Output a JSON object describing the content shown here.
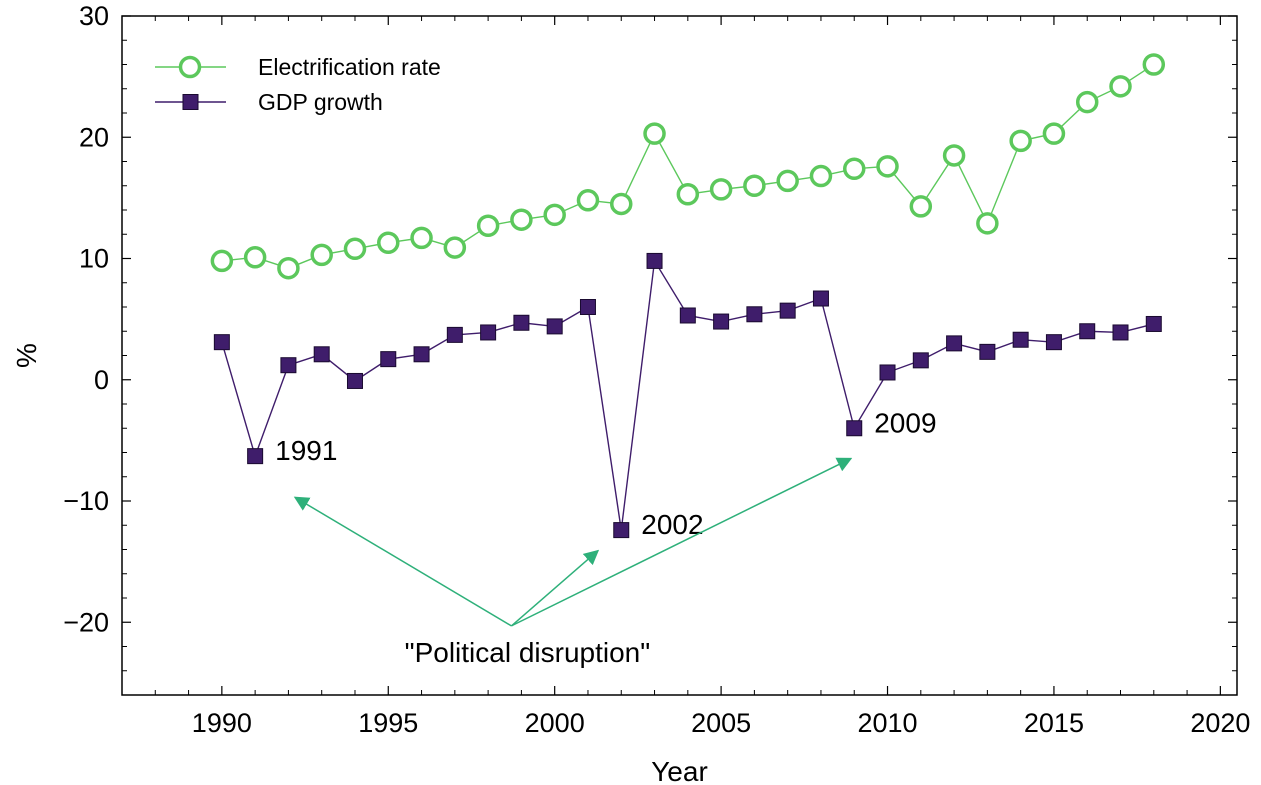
{
  "chart_data": {
    "type": "line",
    "xlabel": "Year",
    "ylabel": "%",
    "xlim": [
      1987,
      2020.5
    ],
    "ylim": [
      -26,
      30
    ],
    "x_ticks": [
      1990,
      1995,
      2000,
      2005,
      2010,
      2015,
      2020
    ],
    "y_ticks": [
      -20,
      -10,
      0,
      10,
      20,
      30
    ],
    "x_tick_labels": [
      "1990",
      "1995",
      "2000",
      "2005",
      "2010",
      "2015",
      "2020"
    ],
    "y_tick_labels": [
      "−20",
      "−10",
      "0",
      "10",
      "20",
      "30"
    ],
    "grid": false,
    "legend_position": "top-left",
    "x": [
      1990,
      1991,
      1992,
      1993,
      1994,
      1995,
      1996,
      1997,
      1998,
      1999,
      2000,
      2001,
      2002,
      2003,
      2004,
      2005,
      2006,
      2007,
      2008,
      2009,
      2010,
      2011,
      2012,
      2013,
      2014,
      2015,
      2016,
      2017,
      2018
    ],
    "series": [
      {
        "name": "Electrification rate",
        "marker": "open-circle",
        "color": "#5cc85c",
        "values": [
          9.8,
          10.1,
          9.2,
          10.3,
          10.8,
          11.3,
          11.7,
          10.9,
          12.7,
          13.2,
          13.6,
          14.8,
          14.5,
          20.3,
          15.3,
          15.7,
          16.0,
          16.4,
          16.8,
          17.4,
          17.6,
          14.3,
          18.5,
          12.9,
          19.7,
          20.3,
          22.9,
          24.2,
          26.0
        ]
      },
      {
        "name": "GDP growth",
        "marker": "filled-square",
        "color": "#3f1d6b",
        "values": [
          3.1,
          -6.3,
          1.2,
          2.1,
          -0.1,
          1.7,
          2.1,
          3.7,
          3.9,
          4.7,
          4.4,
          6.0,
          -12.4,
          9.8,
          5.3,
          4.8,
          5.4,
          5.7,
          6.7,
          -4.0,
          0.6,
          1.6,
          3.0,
          2.3,
          3.3,
          3.1,
          4.0,
          3.9,
          4.6
        ]
      }
    ],
    "annotations": {
      "year_labels": [
        {
          "text": "1991",
          "x": 1991,
          "y": -6.3
        },
        {
          "text": "2002",
          "x": 2002,
          "y": -12.4
        },
        {
          "text": "2009",
          "x": 2009,
          "y": -4.0
        }
      ],
      "callout": {
        "text": "\"Political disruption\"",
        "color": "#2eb07a",
        "origin": {
          "x": 1998.7,
          "y": -20.3
        },
        "arrows_to": [
          {
            "x": 1992.2,
            "y": -9.7
          },
          {
            "x": 2001.3,
            "y": -14.1
          },
          {
            "x": 2008.9,
            "y": -6.5
          }
        ]
      }
    }
  }
}
